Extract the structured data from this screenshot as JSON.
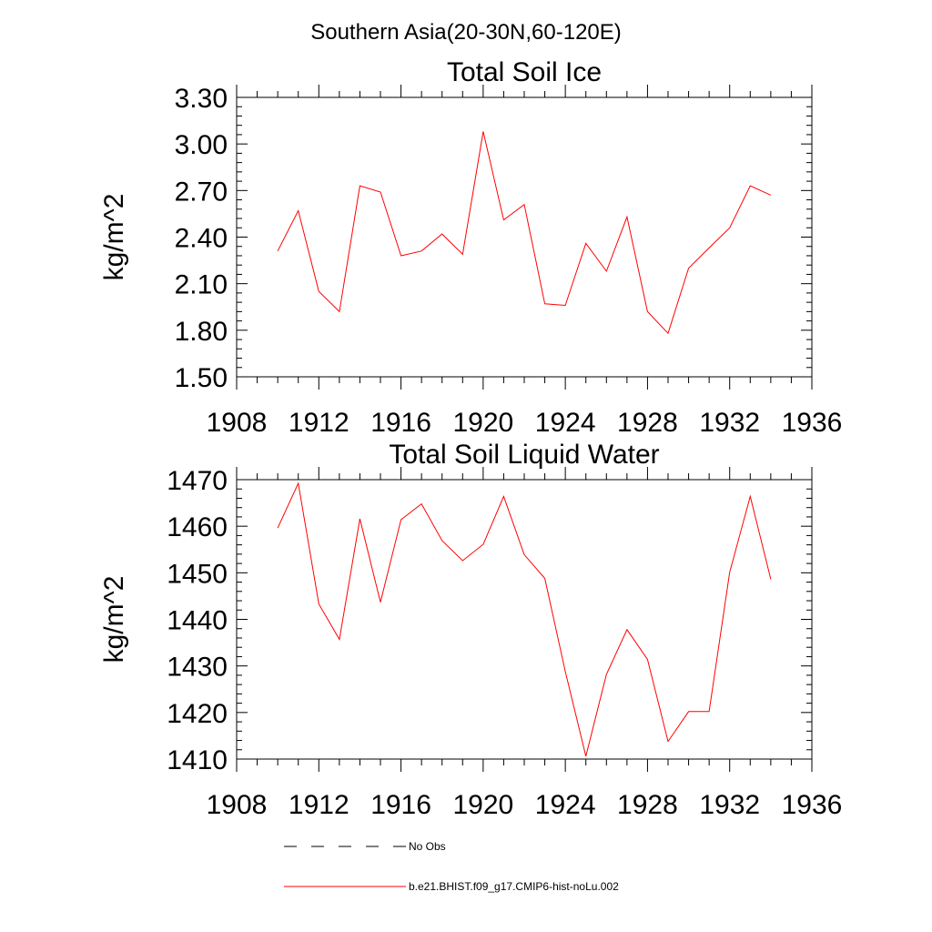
{
  "figure": {
    "suptitle": "Southern Asia(20-30N,60-120E)"
  },
  "legend": {
    "placement": "bottom",
    "entries": [
      {
        "label": "No Obs",
        "style": "dashed",
        "color": "#000000"
      },
      {
        "label": "b.e21.BHIST.f09_g17.CMIP6-hist-noLu.002",
        "style": "solid",
        "color": "#ff0000"
      }
    ]
  },
  "chart_data": [
    {
      "type": "line",
      "title": "Total Soil Ice",
      "xlabel": "",
      "ylabel": "kg/m^2",
      "xlim": [
        1908,
        1936
      ],
      "ylim": [
        1.5,
        3.3
      ],
      "xticks": [
        1908,
        1912,
        1916,
        1920,
        1924,
        1928,
        1932,
        1936
      ],
      "xtick_labels": [
        "1908",
        "1912",
        "1916",
        "1920",
        "1924",
        "1928",
        "1932",
        "1936"
      ],
      "yticks": [
        1.5,
        1.8,
        2.1,
        2.4,
        2.7,
        3.0,
        3.3
      ],
      "ytick_labels": [
        "1.50",
        "1.80",
        "2.10",
        "2.40",
        "2.70",
        "3.00",
        "3.30"
      ],
      "grid": false,
      "series": [
        {
          "color": "#ff0000",
          "x": [
            1910,
            1911,
            1912,
            1913,
            1914,
            1915,
            1916,
            1917,
            1918,
            1919,
            1920,
            1921,
            1922,
            1923,
            1924,
            1925,
            1926,
            1927,
            1928,
            1929,
            1930,
            1931,
            1932,
            1933,
            1934
          ],
          "y": [
            2.31,
            2.57,
            2.05,
            1.92,
            2.73,
            2.69,
            2.28,
            2.31,
            2.42,
            2.29,
            3.08,
            2.51,
            2.61,
            1.97,
            1.96,
            2.36,
            2.18,
            2.53,
            1.92,
            1.78,
            2.2,
            2.33,
            2.46,
            2.73,
            2.67
          ]
        }
      ]
    },
    {
      "type": "line",
      "title": "Total Soil Liquid Water",
      "xlabel": "",
      "ylabel": "kg/m^2",
      "xlim": [
        1908,
        1936
      ],
      "ylim": [
        1410,
        1470
      ],
      "xticks": [
        1908,
        1912,
        1916,
        1920,
        1924,
        1928,
        1932,
        1936
      ],
      "xtick_labels": [
        "1908",
        "1912",
        "1916",
        "1920",
        "1924",
        "1928",
        "1932",
        "1936"
      ],
      "yticks": [
        1410,
        1420,
        1430,
        1440,
        1450,
        1460,
        1470
      ],
      "ytick_labels": [
        "1410",
        "1420",
        "1430",
        "1440",
        "1450",
        "1460",
        "1470"
      ],
      "grid": false,
      "series": [
        {
          "color": "#ff0000",
          "x": [
            1910,
            1911,
            1912,
            1913,
            1914,
            1915,
            1916,
            1917,
            1918,
            1919,
            1920,
            1921,
            1922,
            1923,
            1924,
            1925,
            1926,
            1927,
            1928,
            1929,
            1930,
            1931,
            1932,
            1933,
            1934
          ],
          "y": [
            1459.6,
            1469.2,
            1443.3,
            1435.7,
            1461.6,
            1443.7,
            1461.4,
            1464.8,
            1456.9,
            1452.6,
            1456.1,
            1466.4,
            1453.9,
            1448.8,
            1428.8,
            1410.6,
            1428.2,
            1437.8,
            1431.4,
            1413.8,
            1420.2,
            1420.2,
            1450.1,
            1466.4,
            1448.6
          ]
        }
      ]
    }
  ]
}
